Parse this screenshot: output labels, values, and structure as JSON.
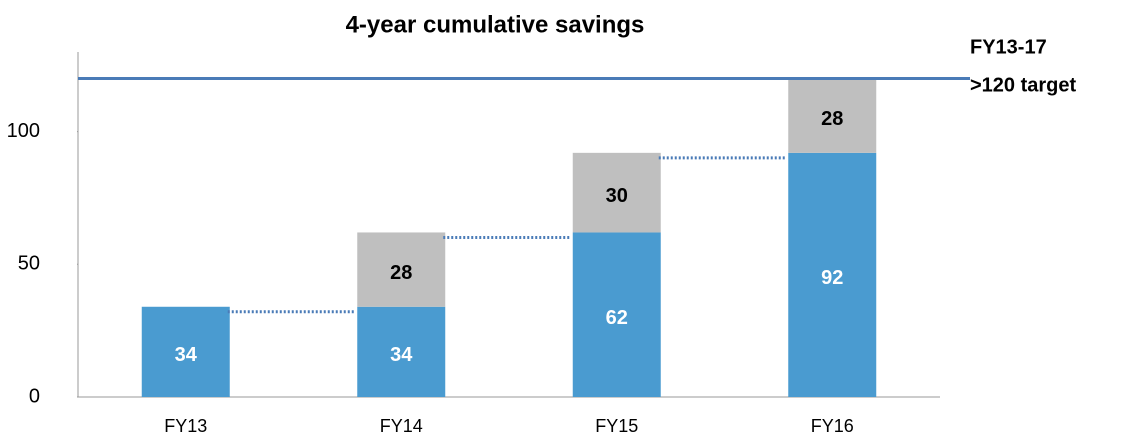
{
  "chart_data": {
    "type": "stacked-bar",
    "title": "4-year cumulative savings",
    "categories": [
      "FY13",
      "FY14",
      "FY15",
      "FY16"
    ],
    "series": [
      {
        "color": "#4a9bd0",
        "label_color": "#ffffff",
        "values": [
          34,
          34,
          62,
          92
        ]
      },
      {
        "color": "#bfbfbf",
        "label_color": "#000000",
        "values": [
          null,
          28,
          30,
          28
        ]
      }
    ],
    "ylim": [
      0,
      130
    ],
    "yticks": [
      0,
      50,
      100
    ],
    "target": 120,
    "target_color": "#4a7bb7",
    "target_label": [
      "FY13-17",
      ">120 target"
    ]
  }
}
